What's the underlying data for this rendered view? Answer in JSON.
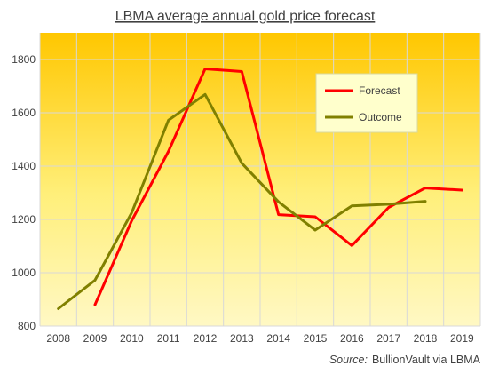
{
  "chart_data": {
    "type": "line",
    "title": "LBMA average annual  gold price forecast",
    "source_label": "Source:",
    "source_text": "BullionVault via LBMA",
    "categories": [
      "2008",
      "2009",
      "2010",
      "2011",
      "2012",
      "2013",
      "2014",
      "2015",
      "2016",
      "2017",
      "2018",
      "2019"
    ],
    "ylim": [
      800,
      1900
    ],
    "yticks": [
      800,
      1000,
      1200,
      1400,
      1600,
      1800
    ],
    "grid": "horizontal and vertical",
    "legend_position": "top-right",
    "series": [
      {
        "name": "Forecast",
        "color": "#ff0000",
        "values": [
          null,
          880,
          1195,
          1455,
          1765,
          1755,
          1218,
          1210,
          1102,
          1245,
          1318,
          1310
        ]
      },
      {
        "name": "Outcome",
        "color": "#808000",
        "values": [
          865,
          972,
          1225,
          1572,
          1669,
          1411,
          1266,
          1160,
          1251,
          1257,
          1268,
          null
        ]
      }
    ],
    "background_gradient": [
      "#ffc700",
      "#fff8c4"
    ]
  }
}
